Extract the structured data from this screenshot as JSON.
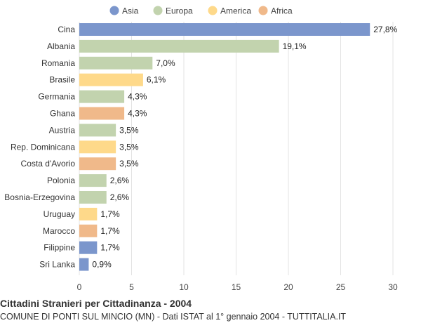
{
  "chart_data": {
    "type": "bar",
    "orientation": "horizontal",
    "title": "Cittadini Stranieri per Cittadinanza - 2004",
    "subtitle": "COMUNE DI PONTI SUL MINCIO (MN) - Dati ISTAT al 1° gennaio 2004 - TUTTITALIA.IT",
    "legend_position": "top",
    "grid": true,
    "xlim": [
      0,
      30
    ],
    "x_ticks": [
      0,
      5,
      10,
      15,
      20,
      25,
      30
    ],
    "legend": [
      {
        "name": "Asia",
        "color": "#7b96cc"
      },
      {
        "name": "Europa",
        "color": "#c2d3ae"
      },
      {
        "name": "America",
        "color": "#fed98a"
      },
      {
        "name": "Africa",
        "color": "#f0b98a"
      }
    ],
    "bars": [
      {
        "category": "Cina",
        "value": 27.8,
        "label": "27,8%",
        "group": "Asia"
      },
      {
        "category": "Albania",
        "value": 19.1,
        "label": "19,1%",
        "group": "Europa"
      },
      {
        "category": "Romania",
        "value": 7.0,
        "label": "7,0%",
        "group": "Europa"
      },
      {
        "category": "Brasile",
        "value": 6.1,
        "label": "6,1%",
        "group": "America"
      },
      {
        "category": "Germania",
        "value": 4.3,
        "label": "4,3%",
        "group": "Europa"
      },
      {
        "category": "Ghana",
        "value": 4.3,
        "label": "4,3%",
        "group": "Africa"
      },
      {
        "category": "Austria",
        "value": 3.5,
        "label": "3,5%",
        "group": "Europa"
      },
      {
        "category": "Rep. Dominicana",
        "value": 3.5,
        "label": "3,5%",
        "group": "America"
      },
      {
        "category": "Costa d'Avorio",
        "value": 3.5,
        "label": "3,5%",
        "group": "Africa"
      },
      {
        "category": "Polonia",
        "value": 2.6,
        "label": "2,6%",
        "group": "Europa"
      },
      {
        "category": "Bosnia-Erzegovina",
        "value": 2.6,
        "label": "2,6%",
        "group": "Europa"
      },
      {
        "category": "Uruguay",
        "value": 1.7,
        "label": "1,7%",
        "group": "America"
      },
      {
        "category": "Marocco",
        "value": 1.7,
        "label": "1,7%",
        "group": "Africa"
      },
      {
        "category": "Filippine",
        "value": 1.7,
        "label": "1,7%",
        "group": "Asia"
      },
      {
        "category": "Sri Lanka",
        "value": 0.9,
        "label": "0,9%",
        "group": "Asia"
      }
    ]
  }
}
